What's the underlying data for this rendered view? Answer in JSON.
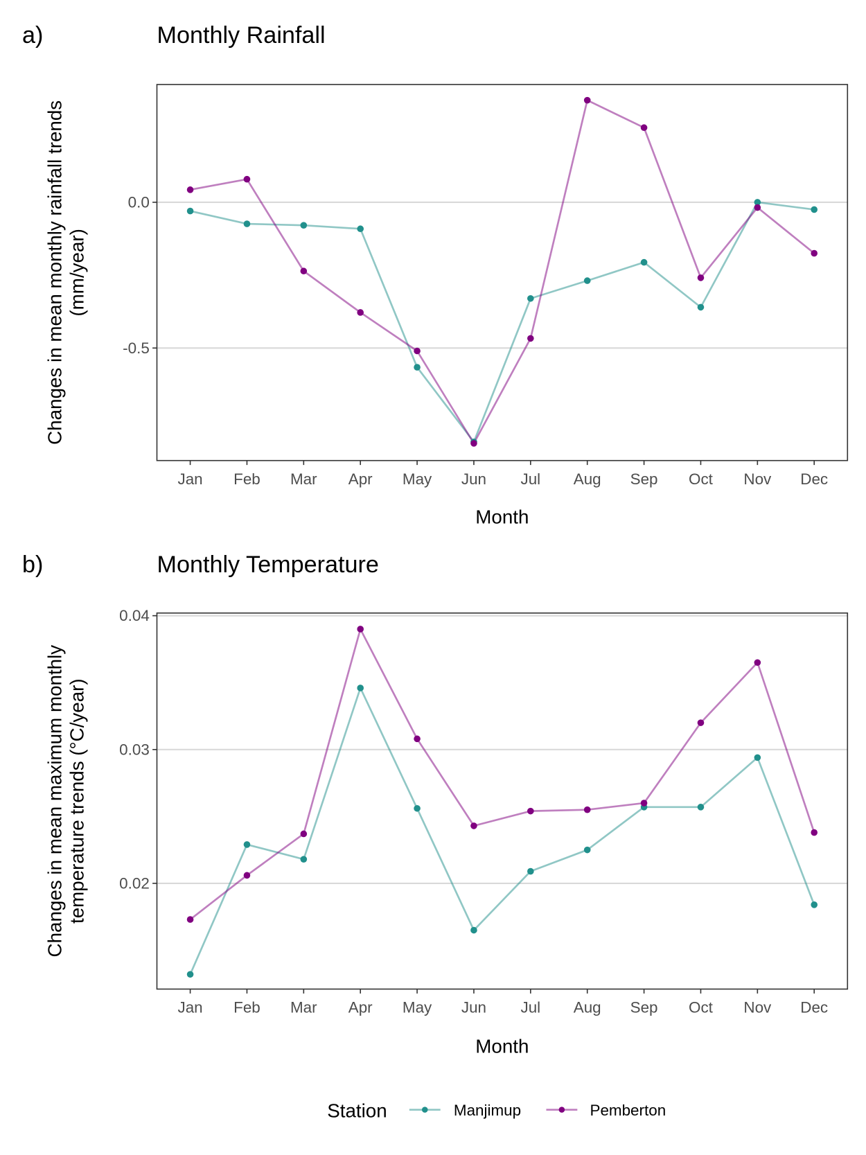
{
  "legend": {
    "title": "Station",
    "position": "bottom"
  },
  "colors": {
    "Manjimup": "#21908C",
    "Pemberton": "#800080",
    "grid": "#d9d9d9"
  },
  "chart_data": [
    {
      "type": "line",
      "tag": "a)",
      "title": "Monthly Rainfall",
      "xlabel": "Month",
      "ylabel_lines": [
        "Changes in mean monthly rainfall trends",
        "(mm/year)"
      ],
      "categories": [
        "Jan",
        "Feb",
        "Mar",
        "Apr",
        "May",
        "Jun",
        "Jul",
        "Aug",
        "Sep",
        "Oct",
        "Nov",
        "Dec"
      ],
      "yticks": [
        0.0,
        -0.5
      ],
      "ytick_labels": [
        "0.0",
        "-0.5"
      ],
      "ylim": [
        -0.886,
        0.404
      ],
      "grid": "horizontal major",
      "series": [
        {
          "name": "Manjimup",
          "values": [
            -0.03,
            -0.074,
            -0.079,
            -0.091,
            -0.566,
            -0.822,
            -0.33,
            -0.269,
            -0.206,
            -0.36,
            0.0,
            -0.025
          ]
        },
        {
          "name": "Pemberton",
          "values": [
            0.043,
            0.079,
            -0.236,
            -0.378,
            -0.51,
            -0.827,
            -0.467,
            0.35,
            0.256,
            -0.259,
            -0.018,
            -0.175
          ]
        }
      ]
    },
    {
      "type": "line",
      "tag": "b)",
      "title": "Monthly Temperature",
      "xlabel": "Month",
      "ylabel_lines": [
        "Changes in mean maximum monthly",
        "temperature trends (°C/year)"
      ],
      "categories": [
        "Jan",
        "Feb",
        "Mar",
        "Apr",
        "May",
        "Jun",
        "Jul",
        "Aug",
        "Sep",
        "Oct",
        "Nov",
        "Dec"
      ],
      "yticks": [
        0.04,
        0.03,
        0.02
      ],
      "ytick_labels": [
        "0.04",
        "0.03",
        "0.02"
      ],
      "ylim": [
        0.0121,
        0.0402
      ],
      "grid": "horizontal major",
      "series": [
        {
          "name": "Manjimup",
          "values": [
            0.0132,
            0.0229,
            0.0218,
            0.0346,
            0.0256,
            0.0165,
            0.0209,
            0.0225,
            0.0257,
            0.0257,
            0.0294,
            0.0184
          ]
        },
        {
          "name": "Pemberton",
          "values": [
            0.0173,
            0.0206,
            0.0237,
            0.039,
            0.0308,
            0.0243,
            0.0254,
            0.0255,
            0.026,
            0.032,
            0.0365,
            0.0238
          ]
        }
      ]
    }
  ]
}
